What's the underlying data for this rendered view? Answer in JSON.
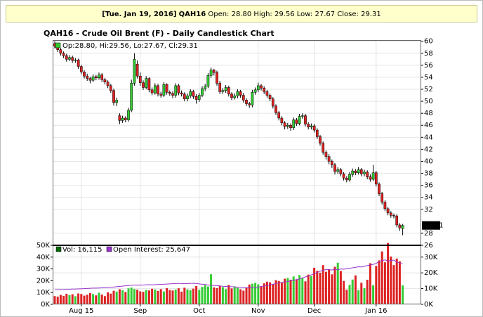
{
  "header": {
    "date": "[Tue. Jan 19, 2016]",
    "symbol": "QAH16",
    "fields": [
      "Open: 28.80",
      "High: 29.56",
      "Low: 27.67",
      "Close: 29.31"
    ]
  },
  "chart_data": [
    {
      "type": "candlestick",
      "title": "QAH16 - Crude Oil Brent (F) - Daily Candlestick Chart",
      "legend": "Op:28.80, Hi:29.56, Lo:27.67, Cl:29.31",
      "up_color": "#33cc33",
      "down_color": "#dd2222",
      "ylim": [
        26,
        60.2
      ],
      "yticks": [
        26,
        28,
        32,
        34,
        36,
        38,
        40,
        42,
        44,
        46,
        48,
        50,
        52,
        54,
        56,
        58,
        60
      ],
      "grid": true,
      "open": [
        59.6,
        59.2,
        58.6,
        58.0,
        57.6,
        57.0,
        57.3,
        56.8,
        56.9,
        55.8,
        54.9,
        54.2,
        53.8,
        53.5,
        54.1,
        53.9,
        54.4,
        53.6,
        53.2,
        52.6,
        51.8,
        49.8,
        47.6,
        46.8,
        47.2,
        46.9,
        48.5,
        53.0,
        56.2,
        54.2,
        53.1,
        52.3,
        53.8,
        51.9,
        51.4,
        52.6,
        51.2,
        51.0,
        52.8,
        51.5,
        51.3,
        51.0,
        52.6,
        51.4,
        51.2,
        50.4,
        50.9,
        51.6,
        50.8,
        50.3,
        51.0,
        52.1,
        52.5,
        54.3,
        55.2,
        54.8,
        53.0,
        51.6,
        51.8,
        52.3,
        51.2,
        50.6,
        50.9,
        51.6,
        51.0,
        50.2,
        49.6,
        49.4,
        51.5,
        51.9,
        52.6,
        52.2,
        51.6,
        51.0,
        50.4,
        49.2,
        48.1,
        47.2,
        46.4,
        45.8,
        46.0,
        45.6,
        46.9,
        46.3,
        47.5,
        47.6,
        46.2,
        45.7,
        45.9,
        45.2,
        44.1,
        43.0,
        41.5,
        40.8,
        40.0,
        39.4,
        38.3,
        38.6,
        37.9,
        37.2,
        36.9,
        37.8,
        38.4,
        38.1,
        38.6,
        37.9,
        38.2,
        37.4,
        37.0,
        38.1,
        36.2,
        34.6,
        33.2,
        32.1,
        31.4,
        31.0,
        30.9,
        29.4,
        28.8
      ],
      "high": [
        60.0,
        59.5,
        58.9,
        58.3,
        57.9,
        57.7,
        57.6,
        57.2,
        57.1,
        56.1,
        55.2,
        54.6,
        54.1,
        54.5,
        54.4,
        54.8,
        54.7,
        53.9,
        53.5,
        52.9,
        52.1,
        50.6,
        48.0,
        47.6,
        47.5,
        48.9,
        53.6,
        58.0,
        56.8,
        54.8,
        53.5,
        54.2,
        54.0,
        52.3,
        53.0,
        52.9,
        51.6,
        53.2,
        53.0,
        51.8,
        51.7,
        53.0,
        52.9,
        51.8,
        51.5,
        51.3,
        52.0,
        51.9,
        51.2,
        51.4,
        52.5,
        52.9,
        54.7,
        55.6,
        55.4,
        55.1,
        53.4,
        52.2,
        52.7,
        52.6,
        51.5,
        51.3,
        52.0,
        51.9,
        51.4,
        50.5,
        49.9,
        51.9,
        52.3,
        53.1,
        52.9,
        52.5,
        51.9,
        51.3,
        50.7,
        49.5,
        48.4,
        47.5,
        46.7,
        46.4,
        46.3,
        47.3,
        47.2,
        47.9,
        48.0,
        47.9,
        46.5,
        46.3,
        46.2,
        45.5,
        44.4,
        43.3,
        41.8,
        41.2,
        40.3,
        39.7,
        39.0,
        38.9,
        38.2,
        37.5,
        38.2,
        38.8,
        38.7,
        39.0,
        38.9,
        38.6,
        38.5,
        37.8,
        39.4,
        38.4,
        36.5,
        34.9,
        33.5,
        32.4,
        31.7,
        31.3,
        31.2,
        29.7,
        29.56
      ],
      "low": [
        58.8,
        58.2,
        57.6,
        57.2,
        56.6,
        56.7,
        56.4,
        56.4,
        55.4,
        54.5,
        53.8,
        53.4,
        53.0,
        53.2,
        53.5,
        53.6,
        53.2,
        52.8,
        52.2,
        51.4,
        49.3,
        49.2,
        46.2,
        46.4,
        46.5,
        46.6,
        48.2,
        52.6,
        53.8,
        52.6,
        51.9,
        52.0,
        51.5,
        51.0,
        51.1,
        50.8,
        50.6,
        50.7,
        51.1,
        50.9,
        50.5,
        50.6,
        51.0,
        50.8,
        50.0,
        50.0,
        50.5,
        50.4,
        49.6,
        49.9,
        50.7,
        51.7,
        52.2,
        53.9,
        54.3,
        52.6,
        51.2,
        51.2,
        51.4,
        50.8,
        50.2,
        50.3,
        50.5,
        50.6,
        49.8,
        49.2,
        48.9,
        49.0,
        51.1,
        51.5,
        51.8,
        51.2,
        50.6,
        50.0,
        48.8,
        47.7,
        46.8,
        46.0,
        45.3,
        45.4,
        45.1,
        45.2,
        45.9,
        46.0,
        47.1,
        45.8,
        45.3,
        45.3,
        44.8,
        43.7,
        42.6,
        41.1,
        40.3,
        39.5,
        38.9,
        37.8,
        37.9,
        37.5,
        36.8,
        36.5,
        36.6,
        37.4,
        37.7,
        37.8,
        37.5,
        37.5,
        37.0,
        36.6,
        36.7,
        35.8,
        34.2,
        32.8,
        31.7,
        31.0,
        30.6,
        30.5,
        29.0,
        28.4,
        27.67
      ],
      "close": [
        59.2,
        58.6,
        58.0,
        57.6,
        57.0,
        57.3,
        56.8,
        56.9,
        55.8,
        54.9,
        54.2,
        53.8,
        53.5,
        54.1,
        53.9,
        54.4,
        53.6,
        53.2,
        52.6,
        51.8,
        49.8,
        50.2,
        46.8,
        47.2,
        46.9,
        48.5,
        53.0,
        57.0,
        54.2,
        53.1,
        52.3,
        53.8,
        51.9,
        51.4,
        52.6,
        51.2,
        51.0,
        52.8,
        51.5,
        51.3,
        51.0,
        52.6,
        51.4,
        51.2,
        50.4,
        50.9,
        51.6,
        50.8,
        50.3,
        51.0,
        52.1,
        52.5,
        54.3,
        55.2,
        54.8,
        53.0,
        51.6,
        51.8,
        52.3,
        51.2,
        50.6,
        50.9,
        51.6,
        51.0,
        50.2,
        49.6,
        49.4,
        51.5,
        51.9,
        52.6,
        52.2,
        51.6,
        51.0,
        50.4,
        49.2,
        48.1,
        47.2,
        46.4,
        45.8,
        46.0,
        45.6,
        46.9,
        46.3,
        47.5,
        47.6,
        46.2,
        45.7,
        45.9,
        45.2,
        44.1,
        43.0,
        41.5,
        40.8,
        40.0,
        39.4,
        38.3,
        38.6,
        37.9,
        37.2,
        36.9,
        37.8,
        38.4,
        38.1,
        38.6,
        37.9,
        38.2,
        37.4,
        37.0,
        38.1,
        36.2,
        34.6,
        33.2,
        32.1,
        31.4,
        31.0,
        30.9,
        29.4,
        28.9,
        29.31
      ]
    },
    {
      "type": "volume",
      "categories": [
        null,
        null,
        null,
        null,
        null,
        null,
        null,
        null,
        null,
        "Aug 15",
        null,
        null,
        null,
        null,
        null,
        null,
        null,
        null,
        null,
        null,
        null,
        null,
        null,
        null,
        null,
        null,
        null,
        null,
        null,
        "Sep",
        null,
        null,
        null,
        null,
        null,
        null,
        null,
        null,
        null,
        null,
        null,
        null,
        null,
        null,
        null,
        null,
        null,
        null,
        null,
        "Oct",
        null,
        null,
        null,
        null,
        null,
        null,
        null,
        null,
        null,
        null,
        null,
        null,
        null,
        null,
        null,
        null,
        null,
        null,
        null,
        "Nov",
        null,
        null,
        null,
        null,
        null,
        null,
        null,
        null,
        null,
        null,
        null,
        null,
        null,
        null,
        null,
        null,
        null,
        null,
        "Dec",
        null,
        null,
        null,
        null,
        null,
        null,
        null,
        null,
        null,
        null,
        null,
        null,
        null,
        null,
        null,
        null,
        null,
        null,
        null,
        null,
        "Jan 16",
        null,
        null,
        null,
        null,
        null,
        null,
        null,
        null,
        null
      ],
      "ylim": [
        0,
        50000
      ],
      "yticks": [
        {
          "value": 0,
          "label": "0K"
        },
        {
          "value": 10000,
          "label": "10K"
        },
        {
          "value": 20000,
          "label": "20K"
        },
        {
          "value": 30000,
          "label": "30K"
        },
        {
          "value": 40000,
          "label": "40K"
        },
        {
          "value": 50000,
          "label": "50K"
        }
      ],
      "y2lim": [
        0,
        37500
      ],
      "y2ticks": [
        {
          "value": 0,
          "label": "0K"
        },
        {
          "value": 10000,
          "label": "10K"
        },
        {
          "value": 20000,
          "label": "20K"
        },
        {
          "value": 30000,
          "label": "30K"
        }
      ],
      "series": [
        {
          "name": "Vol: 16,115",
          "color": "#006600",
          "values": [
            7000,
            6500,
            8000,
            7200,
            9000,
            7800,
            8500,
            6900,
            9200,
            8800,
            7400,
            8100,
            9500,
            8700,
            7600,
            9900,
            8300,
            7000,
            10200,
            9100,
            11500,
            10800,
            12800,
            11900,
            10500,
            13500,
            14200,
            13000,
            12400,
            11000,
            10600,
            12200,
            11800,
            13200,
            12600,
            11400,
            12900,
            10900,
            13800,
            12100,
            11700,
            12500,
            13600,
            10800,
            14100,
            12700,
            11900,
            13300,
            15500,
            12300,
            14800,
            16200,
            15100,
            25500,
            14300,
            13700,
            15800,
            14600,
            12900,
            16500,
            13500,
            15200,
            14000,
            12800,
            11600,
            13900,
            16800,
            17500,
            18200,
            16900,
            15400,
            17800,
            19200,
            18600,
            17100,
            20500,
            19800,
            18300,
            21700,
            22400,
            20900,
            23600,
            21200,
            24800,
            22100,
            19500,
            25200,
            23800,
            31000,
            28400,
            26800,
            33200,
            27600,
            29800,
            25400,
            31800,
            35200,
            28200,
            19800,
            12400,
            16500,
            21000,
            24500,
            12000,
            18300,
            13600,
            20800,
            34800,
            16200,
            32500,
            37200,
            44800,
            35600,
            52000,
            40500,
            33200,
            38800,
            36500,
            16115
          ]
        },
        {
          "name": "Open Interest: 25,647",
          "color": "#9933cc",
          "axis": "y2",
          "values": [
            9200,
            9300,
            9400,
            9400,
            9500,
            9600,
            9700,
            9700,
            9800,
            9900,
            10000,
            10100,
            10200,
            10300,
            10300,
            10400,
            10500,
            10600,
            10700,
            10800,
            11000,
            11200,
            11400,
            11600,
            11800,
            12000,
            12100,
            12200,
            12300,
            12200,
            12300,
            12400,
            12500,
            12400,
            12500,
            12600,
            12700,
            12800,
            12900,
            13000,
            13100,
            13200,
            13300,
            13200,
            13100,
            13200,
            13300,
            13400,
            13200,
            13000,
            12800,
            12600,
            12300,
            12100,
            12000,
            11900,
            11700,
            11500,
            11400,
            11300,
            11200,
            11100,
            10900,
            10800,
            10700,
            10600,
            10600,
            10700,
            10800,
            11000,
            11300,
            11600,
            12000,
            12400,
            12800,
            13200,
            13600,
            13900,
            14200,
            14500,
            14900,
            15300,
            15700,
            16200,
            16800,
            17400,
            18000,
            18700,
            19500,
            20300,
            21000,
            21600,
            22100,
            22000,
            21800,
            22300,
            21900,
            22500,
            22300,
            22600,
            22900,
            23200,
            23500,
            23900,
            23700,
            24200,
            24600,
            25000,
            25400,
            26000,
            27200,
            27800,
            28300,
            27500,
            27900,
            28100,
            26800,
            26200,
            25647
          ]
        }
      ]
    }
  ]
}
